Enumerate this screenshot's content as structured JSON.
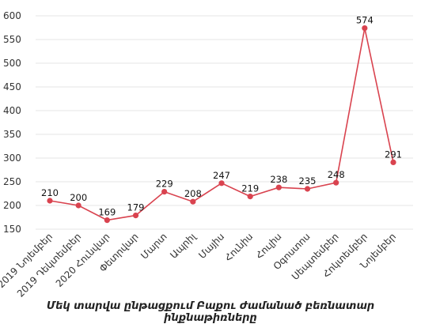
{
  "chart_data": {
    "type": "line",
    "title": "",
    "xlabel": "Մեկ տարվա ընթացքում Բաքու ժամանած բեռնատար ինքնաթիռները",
    "ylabel": "",
    "ylim": [
      150,
      600
    ],
    "yticks": [
      150,
      200,
      250,
      300,
      350,
      400,
      450,
      500,
      550,
      600
    ],
    "grid": true,
    "legend": "none",
    "categories": [
      "2019 Նոյեմբեր",
      "2019 Դեկտեմբեր",
      "2020 Հունվար",
      "Փետրվար",
      "Մարտ",
      "Ապրիլ",
      "Մայիս",
      "Հունիս",
      "Հուլիս",
      "Օգոստոս",
      "Սեպտեմբեր",
      "Հոկտեմբեր",
      "Նոյեմբեր"
    ],
    "series": [
      {
        "values": [
          210,
          200,
          169,
          179,
          229,
          208,
          247,
          219,
          238,
          235,
          248,
          574,
          291
        ],
        "color": "#d9434f"
      }
    ]
  }
}
